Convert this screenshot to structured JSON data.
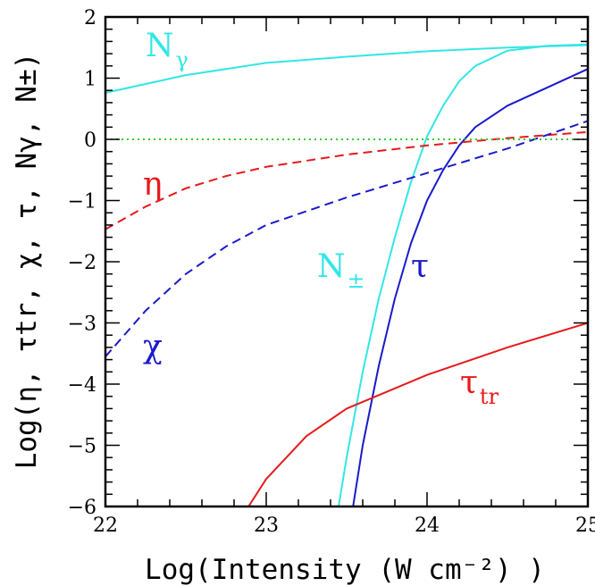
{
  "chart_data": {
    "type": "line",
    "title": "",
    "xlabel": "Log(Intensity (W cm⁻²) )",
    "ylabel": "Log(η, τtr, χ, τ, Nγ, N±)",
    "xlim": [
      22,
      25
    ],
    "ylim": [
      -6,
      2
    ],
    "x_ticks": [
      "22",
      "23",
      "24",
      "25"
    ],
    "y_ticks": [
      "2",
      "1",
      "0",
      "−1",
      "−2",
      "−3",
      "−4",
      "−5",
      "−6"
    ],
    "grid": false,
    "series": [
      {
        "name": "Nγ",
        "label_main": "N",
        "label_sub": "γ",
        "color": "#33e6e6",
        "style": "solid",
        "x": [
          22.0,
          22.5,
          23.0,
          23.5,
          24.0,
          24.5,
          25.0
        ],
        "y": [
          0.76,
          1.05,
          1.25,
          1.35,
          1.44,
          1.5,
          1.54
        ]
      },
      {
        "name": "N±",
        "label_main": "N",
        "label_sub": "±",
        "color": "#33e6e6",
        "style": "solid",
        "x": [
          23.45,
          23.5,
          23.6,
          23.7,
          23.8,
          23.9,
          24.0,
          24.1,
          24.2,
          24.3,
          24.5,
          24.75,
          25.0
        ],
        "y": [
          -6.0,
          -5.2,
          -3.8,
          -2.6,
          -1.6,
          -0.7,
          0.05,
          0.55,
          0.95,
          1.2,
          1.45,
          1.53,
          1.55
        ]
      },
      {
        "name": "τ",
        "label_main": "τ",
        "label_sub": "",
        "color": "#1a1acc",
        "style": "solid",
        "x": [
          23.54,
          23.6,
          23.7,
          23.8,
          23.9,
          24.0,
          24.1,
          24.2,
          24.3,
          24.5,
          24.75,
          25.0
        ],
        "y": [
          -6.0,
          -5.0,
          -3.7,
          -2.6,
          -1.7,
          -1.0,
          -0.5,
          -0.1,
          0.2,
          0.55,
          0.85,
          1.15
        ]
      },
      {
        "name": "η",
        "label_main": "η",
        "label_sub": "",
        "color": "#e61a1a",
        "style": "dashed",
        "x": [
          22.0,
          22.25,
          22.5,
          22.75,
          23.0,
          23.5,
          24.0,
          24.5,
          25.0
        ],
        "y": [
          -1.47,
          -1.1,
          -0.8,
          -0.6,
          -0.45,
          -0.25,
          -0.1,
          0.02,
          0.12
        ]
      },
      {
        "name": "χ",
        "label_main": "χ",
        "label_sub": "",
        "color": "#1a1acc",
        "style": "dashed",
        "x": [
          22.0,
          22.25,
          22.5,
          22.75,
          23.0,
          23.5,
          24.0,
          24.5,
          25.0
        ],
        "y": [
          -3.55,
          -2.8,
          -2.2,
          -1.75,
          -1.4,
          -0.95,
          -0.55,
          -0.15,
          0.3
        ]
      },
      {
        "name": "τtr",
        "label_main": "τ",
        "label_sub": "tr",
        "color": "#e61a1a",
        "style": "solid",
        "x": [
          22.89,
          23.0,
          23.25,
          23.5,
          24.0,
          24.5,
          25.0
        ],
        "y": [
          -6.0,
          -5.55,
          -4.85,
          -4.4,
          -3.85,
          -3.4,
          -3.0
        ]
      },
      {
        "name": "zero",
        "label_main": "",
        "label_sub": "",
        "color": "#33cc33",
        "style": "dotted",
        "x": [
          22.0,
          25.0
        ],
        "y": [
          0.0,
          0.0
        ]
      }
    ]
  }
}
